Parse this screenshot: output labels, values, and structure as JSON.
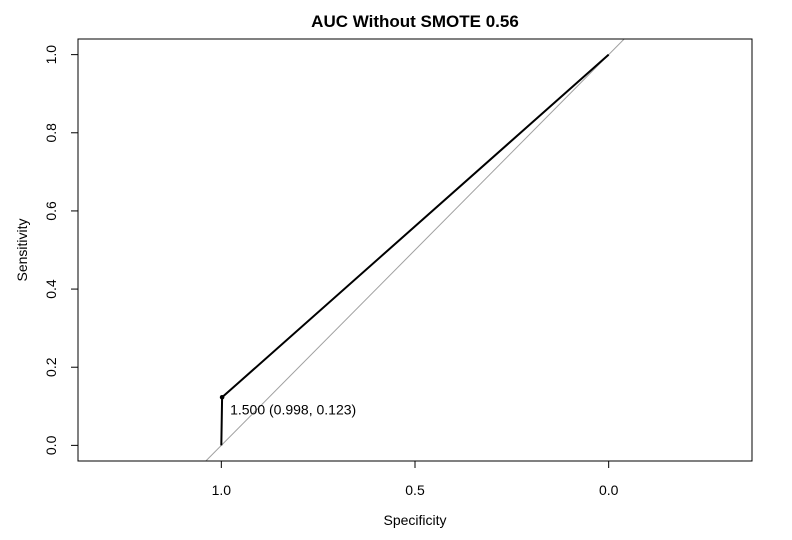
{
  "chart_data": {
    "type": "line",
    "title": "AUC Without SMOTE 0.56",
    "xlabel": "Specificity",
    "ylabel": "Sensitivity",
    "x_reversed": true,
    "xlim": [
      1.37,
      -0.37
    ],
    "ylim": [
      -0.04,
      1.04
    ],
    "x_ticks": [
      1.0,
      0.5,
      0.0
    ],
    "x_tick_labels": [
      "1.0",
      "0.5",
      "0.0"
    ],
    "y_ticks": [
      0.0,
      0.2,
      0.4,
      0.6,
      0.8,
      1.0
    ],
    "y_tick_labels": [
      "0.0",
      "0.2",
      "0.4",
      "0.6",
      "0.8",
      "1.0"
    ],
    "grid": false,
    "series": [
      {
        "points": [
          {
            "x": 1.0,
            "y": 0.0
          },
          {
            "x": 0.998,
            "y": 0.123
          },
          {
            "x": 0.0,
            "y": 1.0
          }
        ],
        "color": "#000000"
      }
    ],
    "reference_line": {
      "from": [
        1.04,
        -0.04
      ],
      "to": [
        -0.04,
        1.04
      ],
      "color": "#a0a0a0"
    },
    "threshold_point": {
      "x": 0.998,
      "y": 0.123
    },
    "annotation": "1.500 (0.998, 0.123)"
  }
}
